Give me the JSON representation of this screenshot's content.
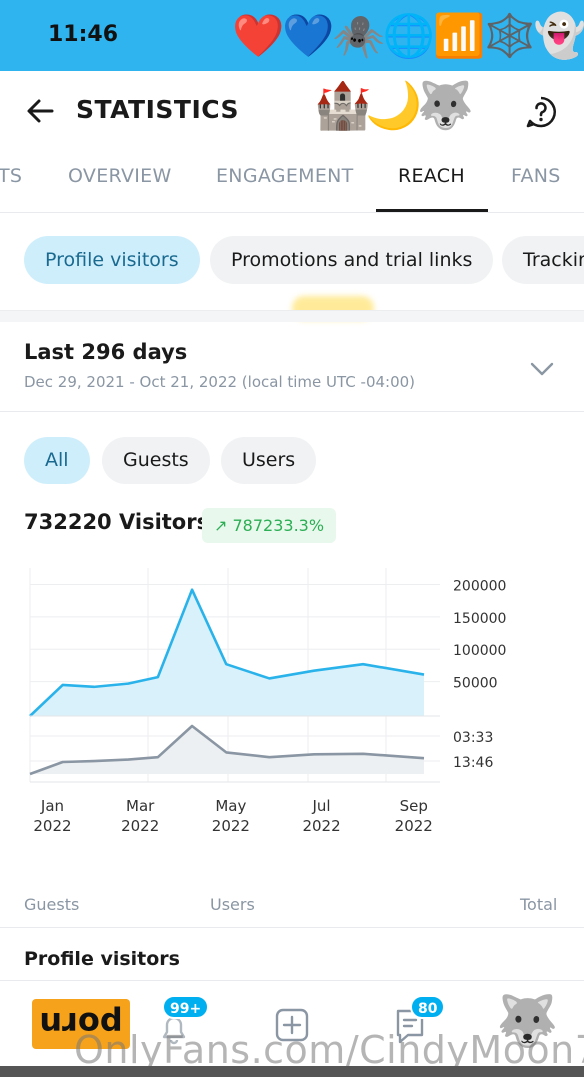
{
  "status_bar": {
    "time": "11:46",
    "emojis": "❤️💙🕷️🌐📶🕸️👻"
  },
  "header": {
    "title": "STATISTICS",
    "emojis": "🏰🌙🐺"
  },
  "tabs": [
    {
      "label": "TS"
    },
    {
      "label": "OVERVIEW"
    },
    {
      "label": "ENGAGEMENT"
    },
    {
      "label": "REACH"
    },
    {
      "label": "FANS"
    }
  ],
  "chips": [
    {
      "label": "Profile visitors"
    },
    {
      "label": "Promotions and trial links"
    },
    {
      "label": "Trackin"
    }
  ],
  "range": {
    "title": "Last 296 days",
    "dates": "Dec 29, 2021 - Oct 21, 2022 (local time UTC -04:00)"
  },
  "segments": [
    {
      "label": "All"
    },
    {
      "label": "Guests"
    },
    {
      "label": "Users"
    }
  ],
  "summary": {
    "visitors": "732220 Visitors",
    "growth": "787233.3%"
  },
  "chart_data": [
    {
      "type": "area",
      "x": [
        "2021-12-29",
        "2022-01-20",
        "2022-02-10",
        "2022-03-05",
        "2022-03-25",
        "2022-04-17",
        "2022-05-10",
        "2022-06-08",
        "2022-07-08",
        "2022-08-10",
        "2022-09-20"
      ],
      "values": [
        0,
        48000,
        45000,
        50000,
        60000,
        195000,
        80000,
        58000,
        70000,
        80000,
        64000
      ],
      "ylim": [
        0,
        210000
      ],
      "yticks": [
        "200000",
        "150000",
        "100000",
        "50000"
      ],
      "ytick_values": [
        200000,
        150000,
        100000,
        50000
      ],
      "color": "#2ab3ea",
      "fill": "#d9f1fb",
      "grid": true
    },
    {
      "type": "area",
      "x": [
        "2021-12-29",
        "2022-01-20",
        "2022-02-10",
        "2022-03-05",
        "2022-03-25",
        "2022-04-17",
        "2022-05-10",
        "2022-06-08",
        "2022-07-08",
        "2022-08-10",
        "2022-09-20"
      ],
      "values": [
        0,
        0.25,
        0.27,
        0.3,
        0.35,
        1.0,
        0.45,
        0.35,
        0.41,
        0.42,
        0.33
      ],
      "yticks": [
        "03:33",
        "13:46"
      ],
      "color": "#8a96a3",
      "fill": "#edf0f2",
      "grid": true
    }
  ],
  "x_axis": {
    "ticks": [
      {
        "date": "2022-01-01",
        "month": "Jan",
        "year": "2022"
      },
      {
        "date": "2022-03-01",
        "month": "Mar",
        "year": "2022"
      },
      {
        "date": "2022-05-01",
        "month": "May",
        "year": "2022"
      },
      {
        "date": "2022-07-01",
        "month": "Jul",
        "year": "2022"
      },
      {
        "date": "2022-09-01",
        "month": "Sep",
        "year": "2022"
      }
    ]
  },
  "legend": {
    "guests": "Guests",
    "users": "Users",
    "total": "Total"
  },
  "section": {
    "title": "Profile visitors"
  },
  "bottom_nav": {
    "brand_badge": "porn",
    "notifications": "99+",
    "messages": "80",
    "avatar": "🐺"
  },
  "watermark": "OnlyFans.com/CindyMoon7",
  "colors": {
    "accent": "#00aff0",
    "status_bar": "#2fb4ef",
    "growth": "#2cae55",
    "badge": "#f7a21b"
  }
}
